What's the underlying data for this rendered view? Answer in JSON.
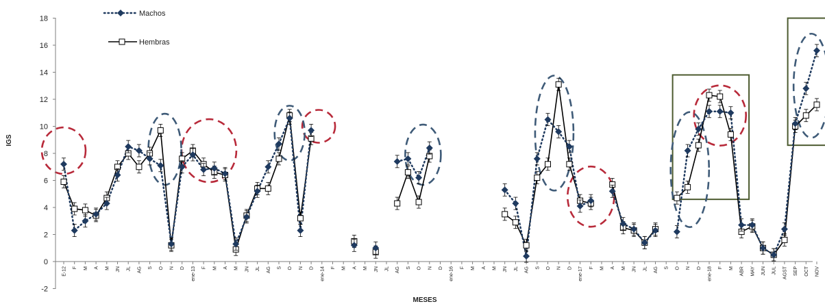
{
  "chart_data": {
    "type": "line",
    "ylabel": "IGS",
    "xlabel": "MESES",
    "ylim": [
      -2,
      18
    ],
    "yticks": [
      -2,
      0,
      2,
      4,
      6,
      8,
      10,
      12,
      14,
      16,
      18
    ],
    "grid": false,
    "legend_position": "top-left",
    "categories": [
      "E-12",
      "F",
      "M",
      "A",
      "M",
      "JN",
      "JL",
      "AG",
      "S",
      "O",
      "N",
      "D",
      "ene-13",
      "F",
      "M",
      "A",
      "M",
      "JN",
      "JL",
      "AG",
      "S",
      "O",
      "N",
      "D",
      "ene-14",
      "F",
      "M",
      "A",
      "M",
      "JN",
      "JL",
      "AG",
      "S",
      "O",
      "N",
      "D",
      "ene-16",
      "F",
      "M",
      "A",
      "M",
      "JN",
      "JL",
      "AG",
      "S",
      "O",
      "N",
      "D",
      "ene-17",
      "F",
      "M",
      "A",
      "M",
      "JN",
      "JL",
      "AG",
      "S",
      "O",
      "N",
      "D",
      "ene-18",
      "F",
      "M",
      "ABR",
      "MAY",
      "JUN",
      "JUL",
      "AGST",
      "SEP",
      "OCT",
      "NOV"
    ],
    "series": [
      {
        "name": "Machos",
        "style": "dotted",
        "marker": "diamond",
        "color": "#1f3a5f",
        "values": [
          7.2,
          2.3,
          3.0,
          3.5,
          4.3,
          6.4,
          8.5,
          8.2,
          7.6,
          7.1,
          1.3,
          7.0,
          7.9,
          6.8,
          6.9,
          6.5,
          1.3,
          3.3,
          5.2,
          7.0,
          8.7,
          10.6,
          2.3,
          9.7,
          null,
          null,
          null,
          1.2,
          null,
          1.0,
          null,
          7.4,
          7.6,
          6.2,
          8.4,
          null,
          null,
          null,
          null,
          null,
          null,
          5.3,
          4.3,
          0.4,
          7.6,
          10.5,
          9.6,
          8.5,
          4.1,
          4.5,
          null,
          5.2,
          2.8,
          2.4,
          1.4,
          2.3,
          null,
          2.2,
          8.2,
          9.8,
          11.1,
          11.1,
          11.0,
          2.7,
          2.7,
          1.0,
          0.5,
          2.4,
          10.2,
          12.8,
          15.6
        ]
      },
      {
        "name": "Hembras",
        "style": "solid",
        "marker": "square",
        "color": "#000000",
        "values": [
          5.9,
          3.9,
          3.8,
          3.4,
          4.7,
          7.0,
          8.0,
          7.0,
          8.0,
          9.7,
          1.2,
          7.6,
          8.2,
          7.2,
          6.6,
          6.4,
          0.9,
          3.4,
          5.4,
          5.4,
          7.6,
          10.8,
          3.2,
          9.1,
          null,
          null,
          null,
          1.5,
          null,
          0.7,
          null,
          4.3,
          6.6,
          4.4,
          7.8,
          null,
          null,
          null,
          null,
          null,
          null,
          3.5,
          2.9,
          1.2,
          6.2,
          7.2,
          13.1,
          7.2,
          4.5,
          4.3,
          null,
          5.7,
          2.5,
          2.3,
          1.4,
          2.4,
          null,
          4.7,
          5.5,
          8.6,
          12.3,
          12.2,
          9.4,
          2.2,
          2.6,
          1.0,
          0.5,
          1.6,
          10.0,
          10.8,
          11.6
        ]
      }
    ],
    "annotations": {
      "red_ellipses": [
        {
          "center_index": 0,
          "y": 8.2
        },
        {
          "center_index": 13.5,
          "y": 8.2
        },
        {
          "center_index": 23.7,
          "y": 10.0
        },
        {
          "center_index": 49,
          "y": 4.8
        },
        {
          "center_index": 61,
          "y": 10.8
        }
      ],
      "blue_ellipses": [
        {
          "center_index": 9.4,
          "y": 8.3
        },
        {
          "center_index": 21.0,
          "y": 9.5
        },
        {
          "center_index": 33.4,
          "y": 7.9
        },
        {
          "center_index": 45.6,
          "y": 9.5
        },
        {
          "center_index": 58.2,
          "y": 6.8
        },
        {
          "center_index": 69.5,
          "y": 13.0
        }
      ],
      "green_boxes": [
        {
          "from_index": 56.6,
          "to_index": 63.7,
          "ymin": 4.6,
          "ymax": 13.8
        },
        {
          "from_index": 67.3,
          "to_index": 71.1,
          "ymin": 8.6,
          "ymax": 18.0
        }
      ]
    }
  },
  "colors": {
    "red_dash": "#b82a3a",
    "blue_dash": "#3f5b78",
    "green_box": "#4b5a2e",
    "marker_dark": "#1f3a5f",
    "error_bar": "#000000"
  }
}
